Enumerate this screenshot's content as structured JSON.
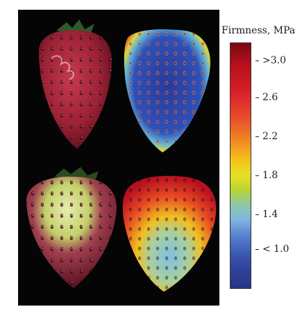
{
  "colorbar": {
    "title": "Firmness, MPa",
    "ticks": [
      ">3.0",
      "2.6",
      "2.2",
      "1.8",
      "1.4",
      "< 1.0"
    ]
  },
  "images": [
    {
      "name": "ripe-strawberry-photo"
    },
    {
      "name": "ripe-strawberry-firmness-map"
    },
    {
      "name": "unripe-strawberry-photo"
    },
    {
      "name": "unripe-strawberry-firmness-map"
    }
  ]
}
